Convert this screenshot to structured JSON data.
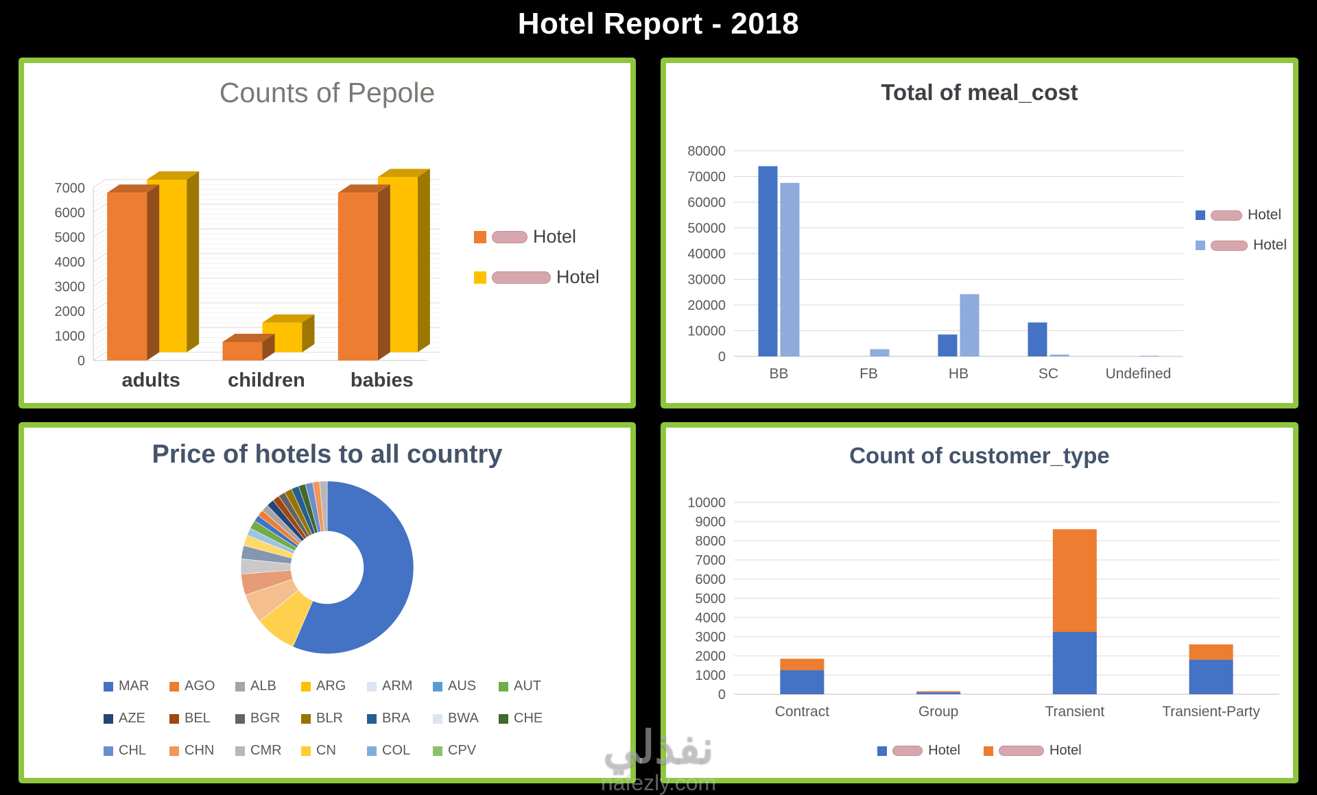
{
  "report": {
    "title": "Hotel Report - 2018"
  },
  "watermark": {
    "line1": "نفذلي",
    "line2": "nafezly.com"
  },
  "theme": {
    "frame_green": "#8EC63F",
    "background": "#010101",
    "redaction_pink": "#D8A7AE"
  },
  "chart_data": [
    {
      "id": "counts_of_people",
      "type": "bar",
      "variant": "3d-clustered",
      "title": "Counts of Pepole",
      "categories": [
        "adults",
        "children",
        "babies"
      ],
      "series": [
        {
          "name": "Hotel",
          "name_redacted": true,
          "color": "#ED7D31",
          "values": [
            6800,
            750,
            6800
          ]
        },
        {
          "name": "Hotel",
          "name_redacted": true,
          "color": "#FFC000",
          "values": [
            7000,
            1200,
            7100
          ]
        }
      ],
      "ylim": [
        0,
        7000
      ],
      "ystep": 1000,
      "grid": true,
      "legend_position": "right"
    },
    {
      "id": "total_of_meal_cost",
      "type": "bar",
      "variant": "clustered",
      "title": "Total of meal_cost",
      "categories": [
        "BB",
        "FB",
        "HB",
        "SC",
        "Undefined"
      ],
      "series": [
        {
          "name": "Hotel",
          "name_redacted": true,
          "color": "#4472C4",
          "values": [
            74000,
            0,
            8500,
            13200,
            0
          ]
        },
        {
          "name": "Hotel",
          "name_redacted": true,
          "color": "#8FAADC",
          "values": [
            67500,
            2800,
            24200,
            700,
            250
          ]
        }
      ],
      "ylim": [
        0,
        80000
      ],
      "ystep": 10000,
      "grid": true,
      "legend_position": "right"
    },
    {
      "id": "price_of_hotels",
      "type": "pie",
      "variant": "donut",
      "title": "Price of hotels to all country",
      "legend_position": "bottom-grid",
      "legend": [
        {
          "label": "MAR",
          "color": "#4472C4"
        },
        {
          "label": "AGO",
          "color": "#ED7D31"
        },
        {
          "label": "ALB",
          "color": "#A5A5A5"
        },
        {
          "label": "ARG",
          "color": "#FFC000"
        },
        {
          "label": "ARM",
          "color": "#DCE5F0"
        },
        {
          "label": "AUS",
          "color": "#5B9BD5"
        },
        {
          "label": "AUT",
          "color": "#70AD47"
        },
        {
          "label": "AZE",
          "color": "#264478"
        },
        {
          "label": "BEL",
          "color": "#9E480E"
        },
        {
          "label": "BGR",
          "color": "#636363"
        },
        {
          "label": "BLR",
          "color": "#997300"
        },
        {
          "label": "BRA",
          "color": "#255E91"
        },
        {
          "label": "BWA",
          "color": "#DCE5F0"
        },
        {
          "label": "CHE",
          "color": "#43682B"
        },
        {
          "label": "CHL",
          "color": "#698ED0"
        },
        {
          "label": "CHN",
          "color": "#F1975A"
        },
        {
          "label": "CMR",
          "color": "#B7B7B7"
        },
        {
          "label": "CN",
          "color": "#FFCD33"
        },
        {
          "label": "COL",
          "color": "#7CAFDD"
        },
        {
          "label": "CPV",
          "color": "#8CC168"
        }
      ],
      "segments": [
        {
          "color": "#4472C4",
          "pct": 56.5
        },
        {
          "color": "#FFD04D",
          "pct": 7.8
        },
        {
          "color": "#F5BE8F",
          "pct": 5.5
        },
        {
          "color": "#E89B77",
          "pct": 4.0
        },
        {
          "color": "#C9C9C9",
          "pct": 2.8
        },
        {
          "color": "#8496B0",
          "pct": 2.5
        },
        {
          "color": "#FFD966",
          "pct": 2.0
        },
        {
          "color": "#9DC3E6",
          "pct": 1.4
        },
        {
          "color": "#70AD47",
          "pct": 1.6
        },
        {
          "color": "#4472C4",
          "pct": 1.2
        },
        {
          "color": "#ED7D31",
          "pct": 1.2
        },
        {
          "color": "#A5A5A5",
          "pct": 1.3
        },
        {
          "color": "#264478",
          "pct": 1.4
        },
        {
          "color": "#9E480E",
          "pct": 1.3
        },
        {
          "color": "#636363",
          "pct": 1.3
        },
        {
          "color": "#997300",
          "pct": 1.4
        },
        {
          "color": "#255E91",
          "pct": 1.4
        },
        {
          "color": "#43682B",
          "pct": 1.3
        },
        {
          "color": "#698ED0",
          "pct": 1.4
        },
        {
          "color": "#F1975A",
          "pct": 1.3
        },
        {
          "color": "#B7B7B7",
          "pct": 1.4
        }
      ]
    },
    {
      "id": "count_of_customer_type",
      "type": "bar",
      "variant": "stacked",
      "title": "Count of customer_type",
      "categories": [
        "Contract",
        "Group",
        "Transient",
        "Transient-Party"
      ],
      "series": [
        {
          "name": "Hotel",
          "name_redacted": true,
          "color": "#4472C4",
          "values": [
            1250,
            100,
            3250,
            1800
          ]
        },
        {
          "name": "Hotel",
          "name_redacted": true,
          "color": "#ED7D31",
          "values": [
            600,
            60,
            5350,
            800
          ]
        }
      ],
      "ylim": [
        0,
        10000
      ],
      "ystep": 1000,
      "grid": true,
      "legend_position": "bottom"
    }
  ]
}
